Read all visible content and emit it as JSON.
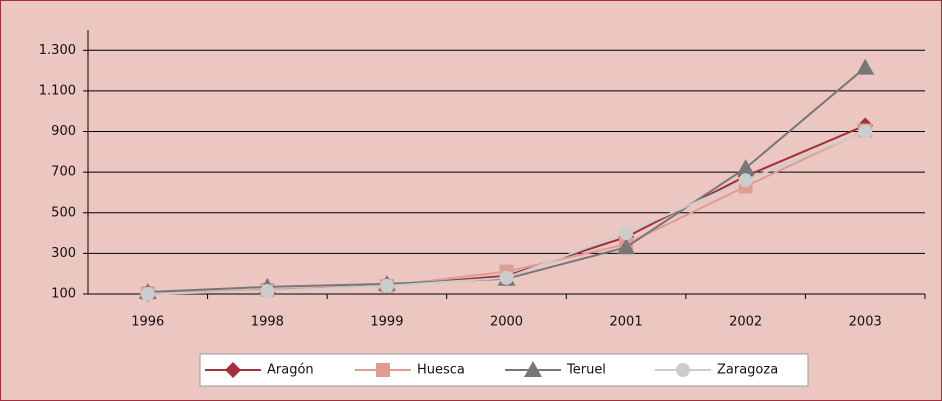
{
  "chart_data": {
    "type": "line",
    "categories": [
      "1996",
      "1998",
      "1999",
      "2000",
      "2001",
      "2002",
      "2003"
    ],
    "series": [
      {
        "name": "Aragón",
        "color": "#a3303c",
        "marker": "diamond",
        "values": [
          100,
          120,
          140,
          190,
          380,
          680,
          930
        ]
      },
      {
        "name": "Huesca",
        "color": "#de9c92",
        "marker": "square",
        "values": [
          105,
          120,
          140,
          210,
          345,
          630,
          905
        ]
      },
      {
        "name": "Teruel",
        "color": "#777777",
        "marker": "triangle",
        "values": [
          110,
          135,
          150,
          175,
          330,
          720,
          1215
        ]
      },
      {
        "name": "Zaragoza",
        "color": "#cccccc",
        "marker": "circle",
        "values": [
          100,
          115,
          140,
          180,
          400,
          660,
          900
        ]
      }
    ],
    "ylim": [
      100,
      1400
    ],
    "yticks": [
      100,
      300,
      500,
      700,
      900,
      {
        "value": 1100,
        "label": "1.100"
      },
      {
        "value": 1300,
        "label": "1.300"
      }
    ],
    "grid": true,
    "legend": "bottom"
  }
}
